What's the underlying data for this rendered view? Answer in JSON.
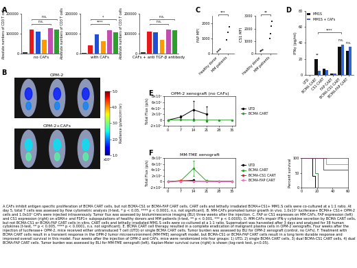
{
  "chart_data": [
    {
      "panel": "A",
      "type": "bar",
      "ylabel": "Absolute numbers of CD3 T cells",
      "colors": [
        "#333333",
        "#e41a1c",
        "#1f4fd8",
        "#ff9900",
        "#c04fb0",
        "#2ca02c"
      ],
      "ylim": [
        0,
        200000
      ],
      "yticks": [
        0,
        100000,
        200000
      ],
      "groups": [
        {
          "xlabel": "no CAFs",
          "values": [
            8000,
            120000,
            110000,
            70000,
            125000,
            118000
          ],
          "annotations": [
            "n.s.",
            "n.s."
          ]
        },
        {
          "xlabel": "with CAFs",
          "values": [
            5000,
            40000,
            95000,
            60000,
            115000,
            105000
          ],
          "annotations": [
            "****",
            "*"
          ]
        },
        {
          "xlabel": "CAFs + anti TGF-β antibody",
          "values": [
            8000,
            110000,
            105000,
            70000,
            120000,
            115000
          ],
          "annotations": [
            "n.s.",
            "n.s."
          ]
        }
      ]
    },
    {
      "panel": "B",
      "type": "image",
      "labels": [
        "OPM-2",
        "OPM-2+CAFs"
      ],
      "colorbar": {
        "range": [
          1,
          5
        ],
        "ticks": [
          {
            "value": 1,
            "label": "1.0"
          },
          {
            "value": 2,
            "label": "2.0"
          },
          {
            "value": 3,
            "label": "3.0"
          },
          {
            "value": 4,
            "label": "4.0"
          },
          {
            "value": 5,
            "label": "5.0"
          }
        ],
        "multiplier": "x10⁶",
        "label": "Radiance (p/sec/cm²/sr)"
      }
    },
    {
      "panel": "C",
      "type": "scatter",
      "categories": [
        "Healthy donor",
        "MM patients"
      ],
      "color": "#222222",
      "charts": [
        {
          "ylabel": "FAP MFI",
          "values": [
            [
              150,
              250,
              300
            ],
            [
              900,
              1400,
              1800
            ]
          ],
          "ylim": [
            0,
            2500
          ],
          "yticks": [
            0,
            1000,
            2000
          ],
          "annotation": "***"
        },
        {
          "ylabel": "CS1 MFI",
          "values": [
            [
              200,
              300,
              350
            ],
            [
              1200,
              1600,
              2200,
              2600
            ]
          ],
          "ylim": [
            0,
            3000
          ],
          "yticks": [
            0,
            1000,
            2000,
            3000
          ],
          "annotation": "**"
        }
      ]
    },
    {
      "panel": "D",
      "type": "bar",
      "ylabel": "IFNγ (pg/ml)",
      "categories": [
        "UTD",
        "BCMA CART",
        "CS1 CART",
        "FAP CART",
        "BCMA-CS1 CART",
        "BCMA-FAP CART"
      ],
      "series": [
        {
          "name": "MM1S",
          "color": "#111111",
          "values": [
            0.5,
            20,
            8,
            2,
            35,
            30
          ]
        },
        {
          "name": "MM1S + CAFs",
          "color": "#3366cc",
          "values": [
            0.5,
            5,
            6,
            2,
            38,
            35
          ]
        }
      ],
      "ylim": [
        0,
        80
      ],
      "yticks": [
        0,
        20,
        40,
        60,
        80
      ],
      "legend": "upper left",
      "annotations": [
        "**",
        "****",
        "n.s.",
        "n.s."
      ]
    },
    {
      "panel": "E",
      "type": "line",
      "title": "OPM-2 xenograft (no CAFs)",
      "ylabel": "Total Flux (p/s)",
      "x": [
        0,
        7,
        14,
        21,
        28,
        35
      ],
      "xlim": [
        -2,
        37
      ],
      "xticks": [
        0,
        7,
        14,
        21,
        28,
        35
      ],
      "ylim": [
        -2000000000,
        8000000000
      ],
      "yticks": [
        {
          "value": -2000000000,
          "label": "-2×10⁹"
        },
        {
          "value": 0,
          "label": "0"
        },
        {
          "value": 2000000000,
          "label": "2×10⁹"
        },
        {
          "value": 4000000000,
          "label": "4×10⁹"
        },
        {
          "value": 6000000000,
          "label": "6×10⁹"
        },
        {
          "value": 8000000000,
          "label": "8×10⁹"
        }
      ],
      "legend": "center left",
      "series": [
        {
          "name": "UTD",
          "color": "#000000",
          "values": [
            0,
            1000000000,
            3500000000,
            2000000000,
            null,
            null
          ],
          "errors": [
            0,
            500000000,
            3000000000,
            2500000000,
            null,
            null
          ]
        },
        {
          "name": "BCMA CART",
          "color": "#2ca02c",
          "values": [
            0,
            100000000,
            0,
            0,
            0,
            0
          ],
          "errors": [
            0,
            100000000,
            0,
            0,
            0,
            0
          ]
        }
      ]
    },
    {
      "panel": "F",
      "type": "line",
      "title": "MM-TME xenograft",
      "ylabel": "Total Flux (p/s)",
      "x": [
        0,
        7,
        14,
        21,
        28,
        35
      ],
      "xlim": [
        -2,
        37
      ],
      "xticks": [
        0,
        7,
        14,
        21,
        28,
        35
      ],
      "ylim": [
        -2000000000,
        8000000000
      ],
      "yticks": [
        {
          "value": -2000000000,
          "label": "-2×10⁹"
        },
        {
          "value": 0,
          "label": "0"
        },
        {
          "value": 2000000000,
          "label": "2×10⁹"
        },
        {
          "value": 4000000000,
          "label": "4×10⁹"
        },
        {
          "value": 6000000000,
          "label": "6×10⁹"
        },
        {
          "value": 8000000000,
          "label": "8×10⁹"
        }
      ],
      "legend": "center left",
      "series": [
        {
          "name": "UTD",
          "color": "#000000",
          "values": [
            0,
            200000000,
            500000000,
            null,
            null,
            null
          ],
          "errors": [
            0,
            100000000,
            300000000,
            null,
            null,
            null
          ],
          "survival": {
            "x": [
              0,
              14,
              17
            ],
            "values": [
              100,
              40,
              0
            ]
          }
        },
        {
          "name": "BCMA CART",
          "color": "#2ca02c",
          "values": [
            0,
            300000000,
            4500000000,
            300000000,
            200000000,
            200000000
          ],
          "errors": [
            0,
            200000000,
            2500000000,
            200000000,
            100000000,
            100000000
          ],
          "survival": {
            "x": [
              0,
              17,
              21
            ],
            "values": [
              100,
              50,
              0
            ]
          }
        },
        {
          "name": "BCMA-CS1 CART",
          "color": "#e41a1c",
          "values": [
            0,
            400000000,
            200000000,
            100000000,
            0,
            0
          ],
          "errors": [
            0,
            200000000,
            100000000,
            100000000,
            0,
            0
          ],
          "survival": {
            "x": [
              0,
              28,
              60
            ],
            "values": [
              100,
              60,
              60
            ]
          }
        },
        {
          "name": "BCMA-FAP CART",
          "color": "#e377c2",
          "values": [
            0,
            200000000,
            100000000,
            50000000,
            0,
            0
          ],
          "errors": [
            0,
            100000000,
            100000000,
            50000000,
            0,
            0
          ],
          "survival": {
            "x": [
              0,
              32,
              60
            ],
            "values": [
              100,
              80,
              80
            ]
          }
        }
      ],
      "survival": {
        "ylabel": "Percent survival",
        "xlim": [
          0,
          60
        ],
        "xticks": [
          0,
          20,
          40,
          60
        ],
        "ylim": [
          0,
          100
        ],
        "yticks": [
          0,
          50,
          100
        ]
      }
    }
  ],
  "caption": "A.CAFs inhibit antigen specific proliferation of BCMA CART cells, but not BCMA-CS1 or BCMA-FAP CART cells. CART cells and lethally irradiated BCMA+CS1+ MM1.S cells were co-cultured at a 1:1 ratio. At day 5, total T cells was assessed by flow cytometric analysis (t-test, * p < 0.05, **** p < 0.0001, n.s. not significant). B. MM-CAFs promoted tumor growth in vivo. 1.0x10⁶ luciferase+ BCMA+ CS1+ OPM-2 cells and 1.0x10⁶ CAFs were injected intravenously. Tumor flux was assessed by bioluminescence imaging (BLI) three weeks after the injection. C. FAP or CS1 expresses on MM-CAFs. FAP expression (left) and CS1 expression (right) on αSMA+ and FSP1+ subpopulations of healthy donors and MM patients (t-test, ** p < 0.001, *** p < 0.0005). D. MM-CAFs impair IFN-γ cytokine secretion by BCMA CART cells, but not BCMA-CS1 or BCMA-FAP CART cells in vitro. CART cells and lethally irradiated MM1.S cells were co-cultured at a 1:1 ratio. Supernatant was harvested after 3 days and analyzed for 38 human cytokines (t-test, ** p < 0.005, **** p < 0.0001, n.s. not significant). E. BCMA CART cell therapy resulted in a complete eradication of malignant plasma cells in OPM-2 xenografts. Four weeks after the injection of luciferase+ OPM-2, mice received either untransduced T cell (UTD) or single BCMA CART cells. Tumor burden was assessed by BLI for OPM-2 xenograft (control, no CAFs). F. Treatment with BCMA CART cells result in a transient response in the OPM-2 tumor microenvironment (MM-TME) xenograft model, but BCMA-CS1 or BCMA-FAP CART cells result in a long term durable response and improved overall survival in this model. Four weeks after the injection of OPM-2 and CAFs, mice were randomized into four groups: 1) UTD, 2) single BCMA CART cells, 3) dual BCMA-CS1 CART cells, 4) dual BCMA-FAP CART cells. Tumor burden was assessed by BLI for MM-TME xenograft (left). Kaplan-Meier survival curve (right) is shown (log-rank test, p<0.05)."
}
